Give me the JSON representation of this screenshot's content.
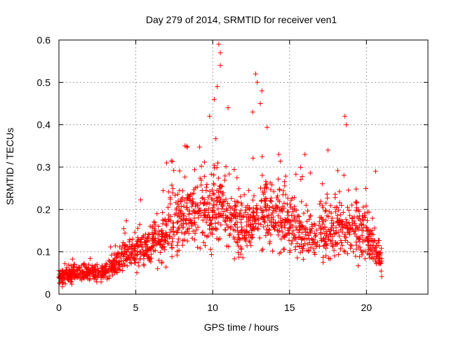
{
  "chart_data": {
    "type": "scatter",
    "title": "Day 279 of 2014, SRMTID for receiver ven1",
    "xlabel": "GPS time / hours",
    "ylabel": "SRMTID / TECUs",
    "xlim": [
      0,
      24
    ],
    "ylim": [
      0,
      0.6
    ],
    "xticks": [
      0,
      5,
      10,
      15,
      20
    ],
    "xtick_labels": [
      "0",
      "5",
      "10",
      "15",
      "20"
    ],
    "yticks": [
      0,
      0.1,
      0.2,
      0.3,
      0.4,
      0.5,
      0.6
    ],
    "ytick_labels": [
      "0",
      "0.1",
      "0.2",
      "0.3",
      "0.4",
      "0.5",
      "0.6"
    ],
    "grid": true,
    "marker": "+",
    "color": "#ff0000",
    "trend": [
      {
        "x": 0.0,
        "y": 0.04
      },
      {
        "x": 1.0,
        "y": 0.05
      },
      {
        "x": 2.0,
        "y": 0.052
      },
      {
        "x": 3.0,
        "y": 0.05
      },
      {
        "x": 3.5,
        "y": 0.065
      },
      {
        "x": 4.0,
        "y": 0.085
      },
      {
        "x": 5.0,
        "y": 0.105
      },
      {
        "x": 6.0,
        "y": 0.11
      },
      {
        "x": 7.0,
        "y": 0.14
      },
      {
        "x": 8.0,
        "y": 0.175
      },
      {
        "x": 9.0,
        "y": 0.19
      },
      {
        "x": 10.0,
        "y": 0.2
      },
      {
        "x": 10.5,
        "y": 0.215
      },
      {
        "x": 11.0,
        "y": 0.18
      },
      {
        "x": 12.0,
        "y": 0.16
      },
      {
        "x": 12.5,
        "y": 0.17
      },
      {
        "x": 13.0,
        "y": 0.2
      },
      {
        "x": 13.5,
        "y": 0.2
      },
      {
        "x": 14.0,
        "y": 0.18
      },
      {
        "x": 15.0,
        "y": 0.165
      },
      {
        "x": 16.0,
        "y": 0.14
      },
      {
        "x": 17.0,
        "y": 0.145
      },
      {
        "x": 18.0,
        "y": 0.15
      },
      {
        "x": 19.0,
        "y": 0.16
      },
      {
        "x": 20.0,
        "y": 0.14
      },
      {
        "x": 21.0,
        "y": 0.075
      }
    ],
    "notable_points": [
      {
        "x": 10.4,
        "y": 0.59
      },
      {
        "x": 10.5,
        "y": 0.57
      },
      {
        "x": 10.5,
        "y": 0.54
      },
      {
        "x": 12.8,
        "y": 0.52
      },
      {
        "x": 12.9,
        "y": 0.5
      },
      {
        "x": 13.2,
        "y": 0.48
      },
      {
        "x": 10.3,
        "y": 0.49
      },
      {
        "x": 10.1,
        "y": 0.46
      },
      {
        "x": 13.1,
        "y": 0.45
      },
      {
        "x": 18.6,
        "y": 0.42
      },
      {
        "x": 18.7,
        "y": 0.4
      },
      {
        "x": 9.8,
        "y": 0.42
      },
      {
        "x": 11.0,
        "y": 0.44
      },
      {
        "x": 12.6,
        "y": 0.43
      },
      {
        "x": 8.2,
        "y": 0.35
      },
      {
        "x": 16.0,
        "y": 0.33
      },
      {
        "x": 17.5,
        "y": 0.34
      },
      {
        "x": 20.6,
        "y": 0.29
      },
      {
        "x": 7.0,
        "y": 0.31
      },
      {
        "x": 14.3,
        "y": 0.33
      }
    ],
    "n_points": 1700,
    "random_seed": 279
  }
}
